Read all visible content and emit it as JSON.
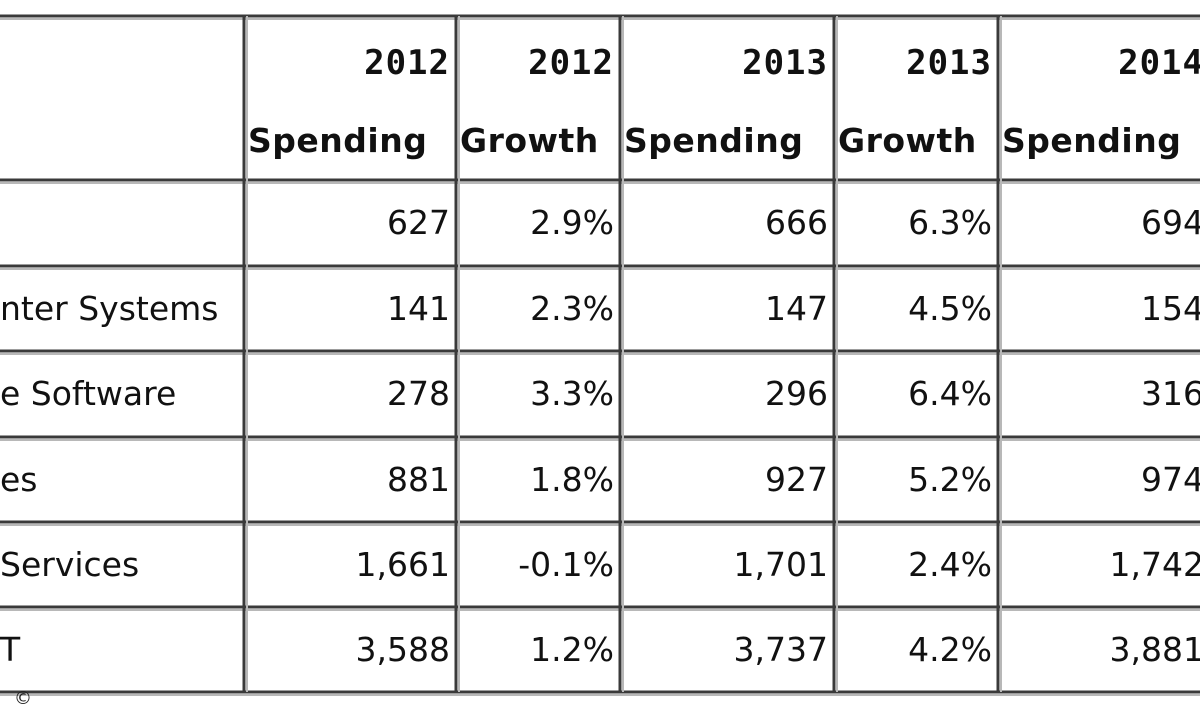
{
  "chart_data": {
    "type": "table",
    "columns": [
      {
        "year": "2012",
        "metric": "Spending"
      },
      {
        "year": "2012",
        "metric": "Growth"
      },
      {
        "year": "2013",
        "metric": "Spending"
      },
      {
        "year": "2013",
        "metric": "Growth"
      },
      {
        "year": "2014",
        "metric": "Spending"
      }
    ],
    "rows": [
      {
        "label": "",
        "cells": [
          "627",
          "2.9%",
          "666",
          "6.3%",
          "694"
        ]
      },
      {
        "label": "nter Systems",
        "cells": [
          "141",
          "2.3%",
          "147",
          "4.5%",
          "154"
        ]
      },
      {
        "label": "e Software",
        "cells": [
          "278",
          "3.3%",
          "296",
          "6.4%",
          "316"
        ]
      },
      {
        "label": "es",
        "cells": [
          "881",
          "1.8%",
          "927",
          "5.2%",
          "974"
        ]
      },
      {
        "label": "Services",
        "cells": [
          "1,661",
          "-0.1%",
          "1,701",
          "2.4%",
          "1,742"
        ]
      },
      {
        "label": "T",
        "cells": [
          "3,588",
          "1.2%",
          "3,737",
          "4.2%",
          "3,881"
        ]
      }
    ]
  },
  "copyright_symbol": "©",
  "colors": {
    "border_dark": "#3a3a3a",
    "border_light": "#b8b8b8",
    "text": "#111111"
  }
}
